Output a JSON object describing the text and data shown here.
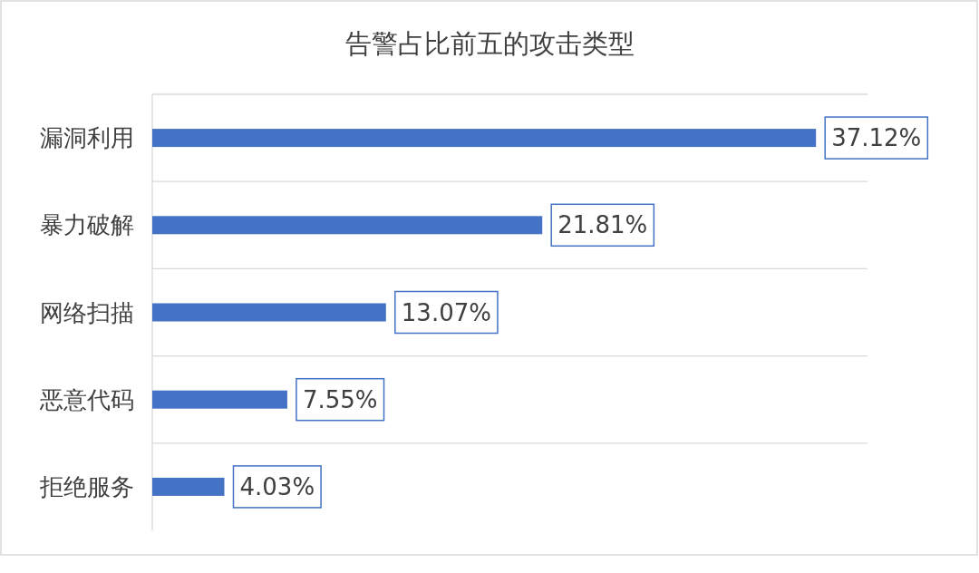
{
  "chart_data": {
    "type": "bar",
    "orientation": "horizontal",
    "title": "告警占比前五的攻击类型",
    "categories": [
      "漏洞利用",
      "暴力破解",
      "网络扫描",
      "恶意代码",
      "拒绝服务"
    ],
    "values": [
      37.12,
      21.81,
      13.07,
      7.55,
      4.03
    ],
    "value_labels": [
      "37.12%",
      "21.81%",
      "13.07%",
      "7.55%",
      "4.03%"
    ],
    "color": "#4472c4",
    "xlim": [
      0,
      40
    ],
    "grid": "y"
  }
}
